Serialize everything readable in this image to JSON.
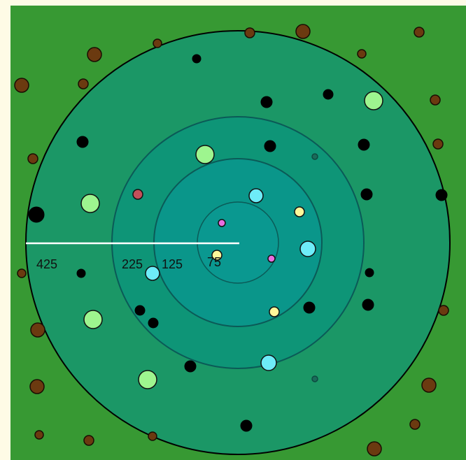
{
  "colors": {
    "page": "#fefbe6",
    "field": "#379933",
    "outer_zone": "#1b9766",
    "middle_zone": "#0e9577",
    "inner_zone": "#0a968a",
    "core_zone": "#0a9890",
    "ring_outline": "#0b5a57",
    "outer_outline": "#000000",
    "ruler": "#ffffff"
  },
  "ring_labels": [
    "425",
    "225",
    "125",
    "75"
  ],
  "dot_types": {
    "brown": {
      "fill": "#6b3a10",
      "stroke": "#1a0d03"
    },
    "black": {
      "fill": "#000000",
      "stroke": "#000000"
    },
    "green": {
      "fill": "#9ef58f",
      "stroke": "#111111"
    },
    "cyan": {
      "fill": "#6eecf8",
      "stroke": "#111111"
    },
    "yellow": {
      "fill": "#fef89a",
      "stroke": "#111111"
    },
    "magenta": {
      "fill": "#e86ee0",
      "stroke": "#111111"
    },
    "red": {
      "fill": "#c3505a",
      "stroke": "#111111"
    },
    "faint": {
      "fill": "#1b6b5a",
      "stroke": "#0d4a40"
    }
  }
}
